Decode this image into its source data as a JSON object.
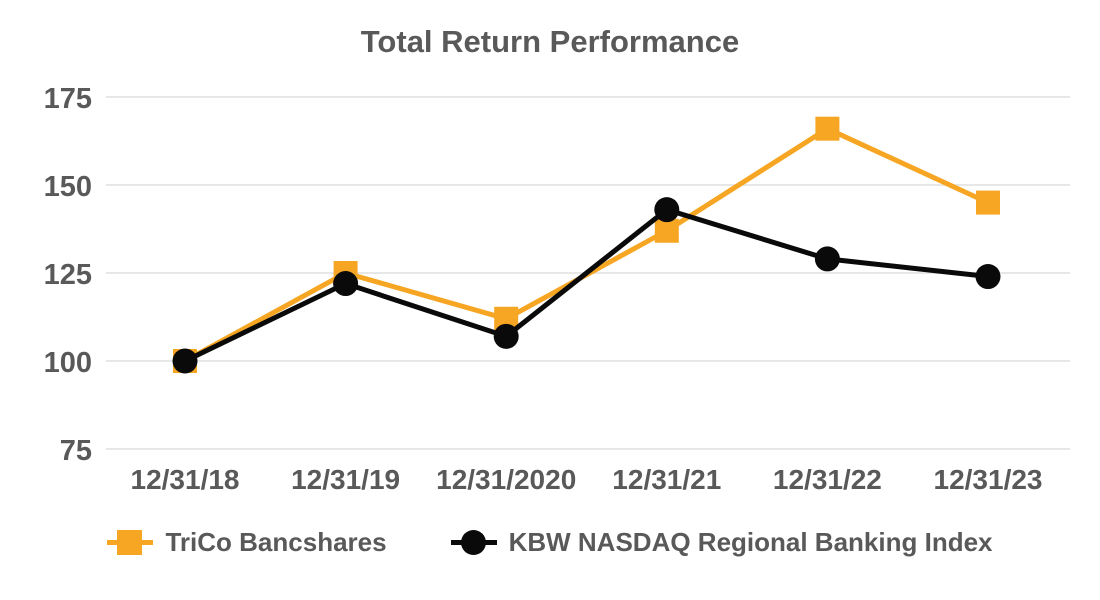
{
  "chart_data": {
    "type": "line",
    "title": "Total Return Performance",
    "x": [
      "12/31/18",
      "12/31/19",
      "12/31/2020",
      "12/31/21",
      "12/31/22",
      "12/31/23"
    ],
    "series": [
      {
        "name": "TriCo Bancshares",
        "marker": "square",
        "color": "#F6A623",
        "values": [
          100,
          125,
          112,
          137,
          166,
          145
        ]
      },
      {
        "name": "KBW NASDAQ Regional Banking Index",
        "marker": "circle",
        "color": "#0A0A0A",
        "values": [
          100,
          122,
          107,
          143,
          129,
          124
        ]
      }
    ],
    "ylim": [
      75,
      175
    ],
    "yticks": [
      175,
      150,
      125,
      100,
      75
    ],
    "grid": true,
    "legend_position": "bottom",
    "colors": {
      "grid": "#E7E7E7",
      "text": "#595959",
      "background": "#FFFFFF"
    }
  }
}
